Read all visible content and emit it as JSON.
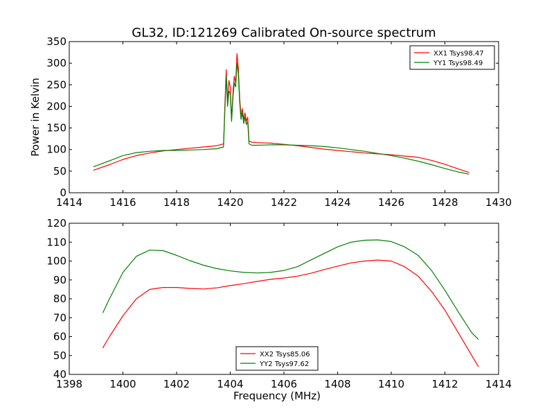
{
  "title": "GL32, ID:121269 Calibrated On-source spectrum",
  "chart_data": [
    {
      "type": "line",
      "ylabel": "Power in Kelvin",
      "xlabel": "",
      "xlim": [
        1414,
        1430
      ],
      "ylim": [
        0,
        350
      ],
      "xticks": [
        1414,
        1416,
        1418,
        1420,
        1422,
        1424,
        1426,
        1428,
        1430
      ],
      "yticks": [
        0,
        50,
        100,
        150,
        200,
        250,
        300,
        350
      ],
      "legend_position": "top-right",
      "grid": false,
      "series": [
        {
          "name": "XX1 Tsys98.47",
          "color": "#ff0000",
          "x": [
            1414.9,
            1415.5,
            1416,
            1416.5,
            1417,
            1417.5,
            1418,
            1418.5,
            1419,
            1419.5,
            1419.75,
            1419.8,
            1419.85,
            1419.9,
            1419.95,
            1420.0,
            1420.05,
            1420.1,
            1420.15,
            1420.2,
            1420.25,
            1420.3,
            1420.35,
            1420.4,
            1420.45,
            1420.5,
            1420.55,
            1420.6,
            1420.65,
            1420.7,
            1420.8,
            1421,
            1421.5,
            1422,
            1422.5,
            1423,
            1423.5,
            1424,
            1424.5,
            1425,
            1425.5,
            1426,
            1426.5,
            1427,
            1427.5,
            1428,
            1428.5,
            1428.9
          ],
          "y": [
            52,
            65,
            77,
            86,
            92,
            97,
            100,
            103,
            106,
            109,
            113,
            200,
            285,
            210,
            260,
            245,
            170,
            230,
            270,
            255,
            322,
            290,
            220,
            180,
            195,
            170,
            185,
            165,
            175,
            120,
            117,
            116,
            115,
            112,
            109,
            105,
            101,
            98,
            95,
            92,
            90,
            88,
            85,
            82,
            75,
            66,
            55,
            47
          ]
        },
        {
          "name": "YY1 Tsys98.49",
          "color": "#008000",
          "x": [
            1414.9,
            1415.5,
            1416,
            1416.5,
            1417,
            1417.5,
            1418,
            1418.5,
            1419,
            1419.5,
            1419.75,
            1419.8,
            1419.85,
            1419.9,
            1419.95,
            1420.0,
            1420.05,
            1420.1,
            1420.15,
            1420.2,
            1420.25,
            1420.3,
            1420.35,
            1420.4,
            1420.45,
            1420.5,
            1420.55,
            1420.6,
            1420.65,
            1420.7,
            1420.8,
            1421,
            1421.5,
            1422,
            1422.5,
            1423,
            1423.5,
            1424,
            1424.5,
            1425,
            1425.5,
            1426,
            1426.5,
            1427,
            1427.5,
            1428,
            1428.5,
            1428.9
          ],
          "y": [
            60,
            74,
            86,
            93,
            96,
            98,
            98,
            99,
            100,
            102,
            106,
            190,
            270,
            200,
            235,
            230,
            165,
            220,
            255,
            245,
            300,
            275,
            210,
            170,
            185,
            160,
            175,
            158,
            165,
            113,
            110,
            110,
            111,
            111,
            110,
            109,
            107,
            104,
            100,
            96,
            91,
            86,
            80,
            73,
            65,
            56,
            48,
            43
          ]
        }
      ]
    },
    {
      "type": "line",
      "ylabel": "",
      "xlabel": "Frequency (MHz)",
      "xlim": [
        1398,
        1414
      ],
      "ylim": [
        40,
        120
      ],
      "xticks": [
        1398,
        1400,
        1402,
        1404,
        1406,
        1408,
        1410,
        1412,
        1414
      ],
      "yticks": [
        40,
        50,
        60,
        70,
        80,
        90,
        100,
        110,
        120
      ],
      "legend_position": "bottom-center",
      "grid": false,
      "series": [
        {
          "name": "XX2 Tsys85.06",
          "color": "#ff0000",
          "x": [
            1399.25,
            1399.5,
            1400,
            1400.5,
            1401,
            1401.5,
            1402,
            1402.5,
            1403,
            1403.5,
            1404,
            1404.5,
            1405,
            1405.5,
            1406,
            1406.5,
            1407,
            1407.5,
            1408,
            1408.5,
            1409,
            1409.5,
            1410,
            1410.5,
            1411,
            1411.5,
            1412,
            1412.5,
            1413,
            1413.25
          ],
          "y": [
            54,
            60,
            71,
            80,
            85,
            86,
            86,
            85.5,
            85.2,
            85.8,
            87,
            88,
            89.2,
            90.3,
            91,
            92,
            93.5,
            95.5,
            97.3,
            99,
            100,
            100.5,
            100,
            97,
            92,
            84,
            74,
            62,
            50,
            44
          ]
        },
        {
          "name": "YY2 Tsys97.62",
          "color": "#008000",
          "x": [
            1399.25,
            1399.5,
            1400,
            1400.5,
            1401,
            1401.5,
            1402,
            1402.5,
            1403,
            1403.5,
            1404,
            1404.5,
            1405,
            1405.5,
            1406,
            1406.5,
            1407,
            1407.5,
            1408,
            1408.5,
            1409,
            1409.5,
            1410,
            1410.5,
            1411,
            1411.5,
            1412,
            1412.5,
            1413,
            1413.25
          ],
          "y": [
            72.5,
            80,
            94,
            102.5,
            105.8,
            105.5,
            103,
            100.2,
            97.8,
            96,
            94.8,
            94,
            93.7,
            94,
            95,
            97,
            100.5,
            104,
            107.5,
            110,
            111,
            111.2,
            110.3,
            107.5,
            103,
            95,
            84.5,
            73,
            62,
            58.5
          ]
        }
      ]
    }
  ]
}
